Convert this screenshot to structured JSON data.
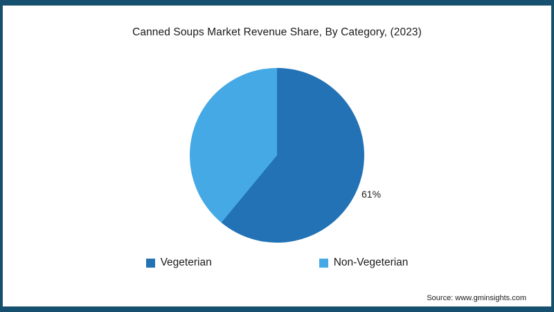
{
  "frame": {
    "border_color": "#16506e",
    "background": "#ffffff"
  },
  "chart_data": {
    "type": "pie",
    "title": "Canned Soups Market Revenue Share, By Category, (2023)",
    "start_angle_deg": 0,
    "direction": "clockwise",
    "legend_position": "bottom",
    "slices": [
      {
        "label": "Vegeterian",
        "value": 61,
        "color": "#2272b5",
        "data_label": "61%"
      },
      {
        "label": "Non-Vegeterian",
        "value": 39,
        "color": "#45a9e5",
        "data_label": ""
      }
    ]
  },
  "source": {
    "text": "Source: www.gminsights.com"
  }
}
